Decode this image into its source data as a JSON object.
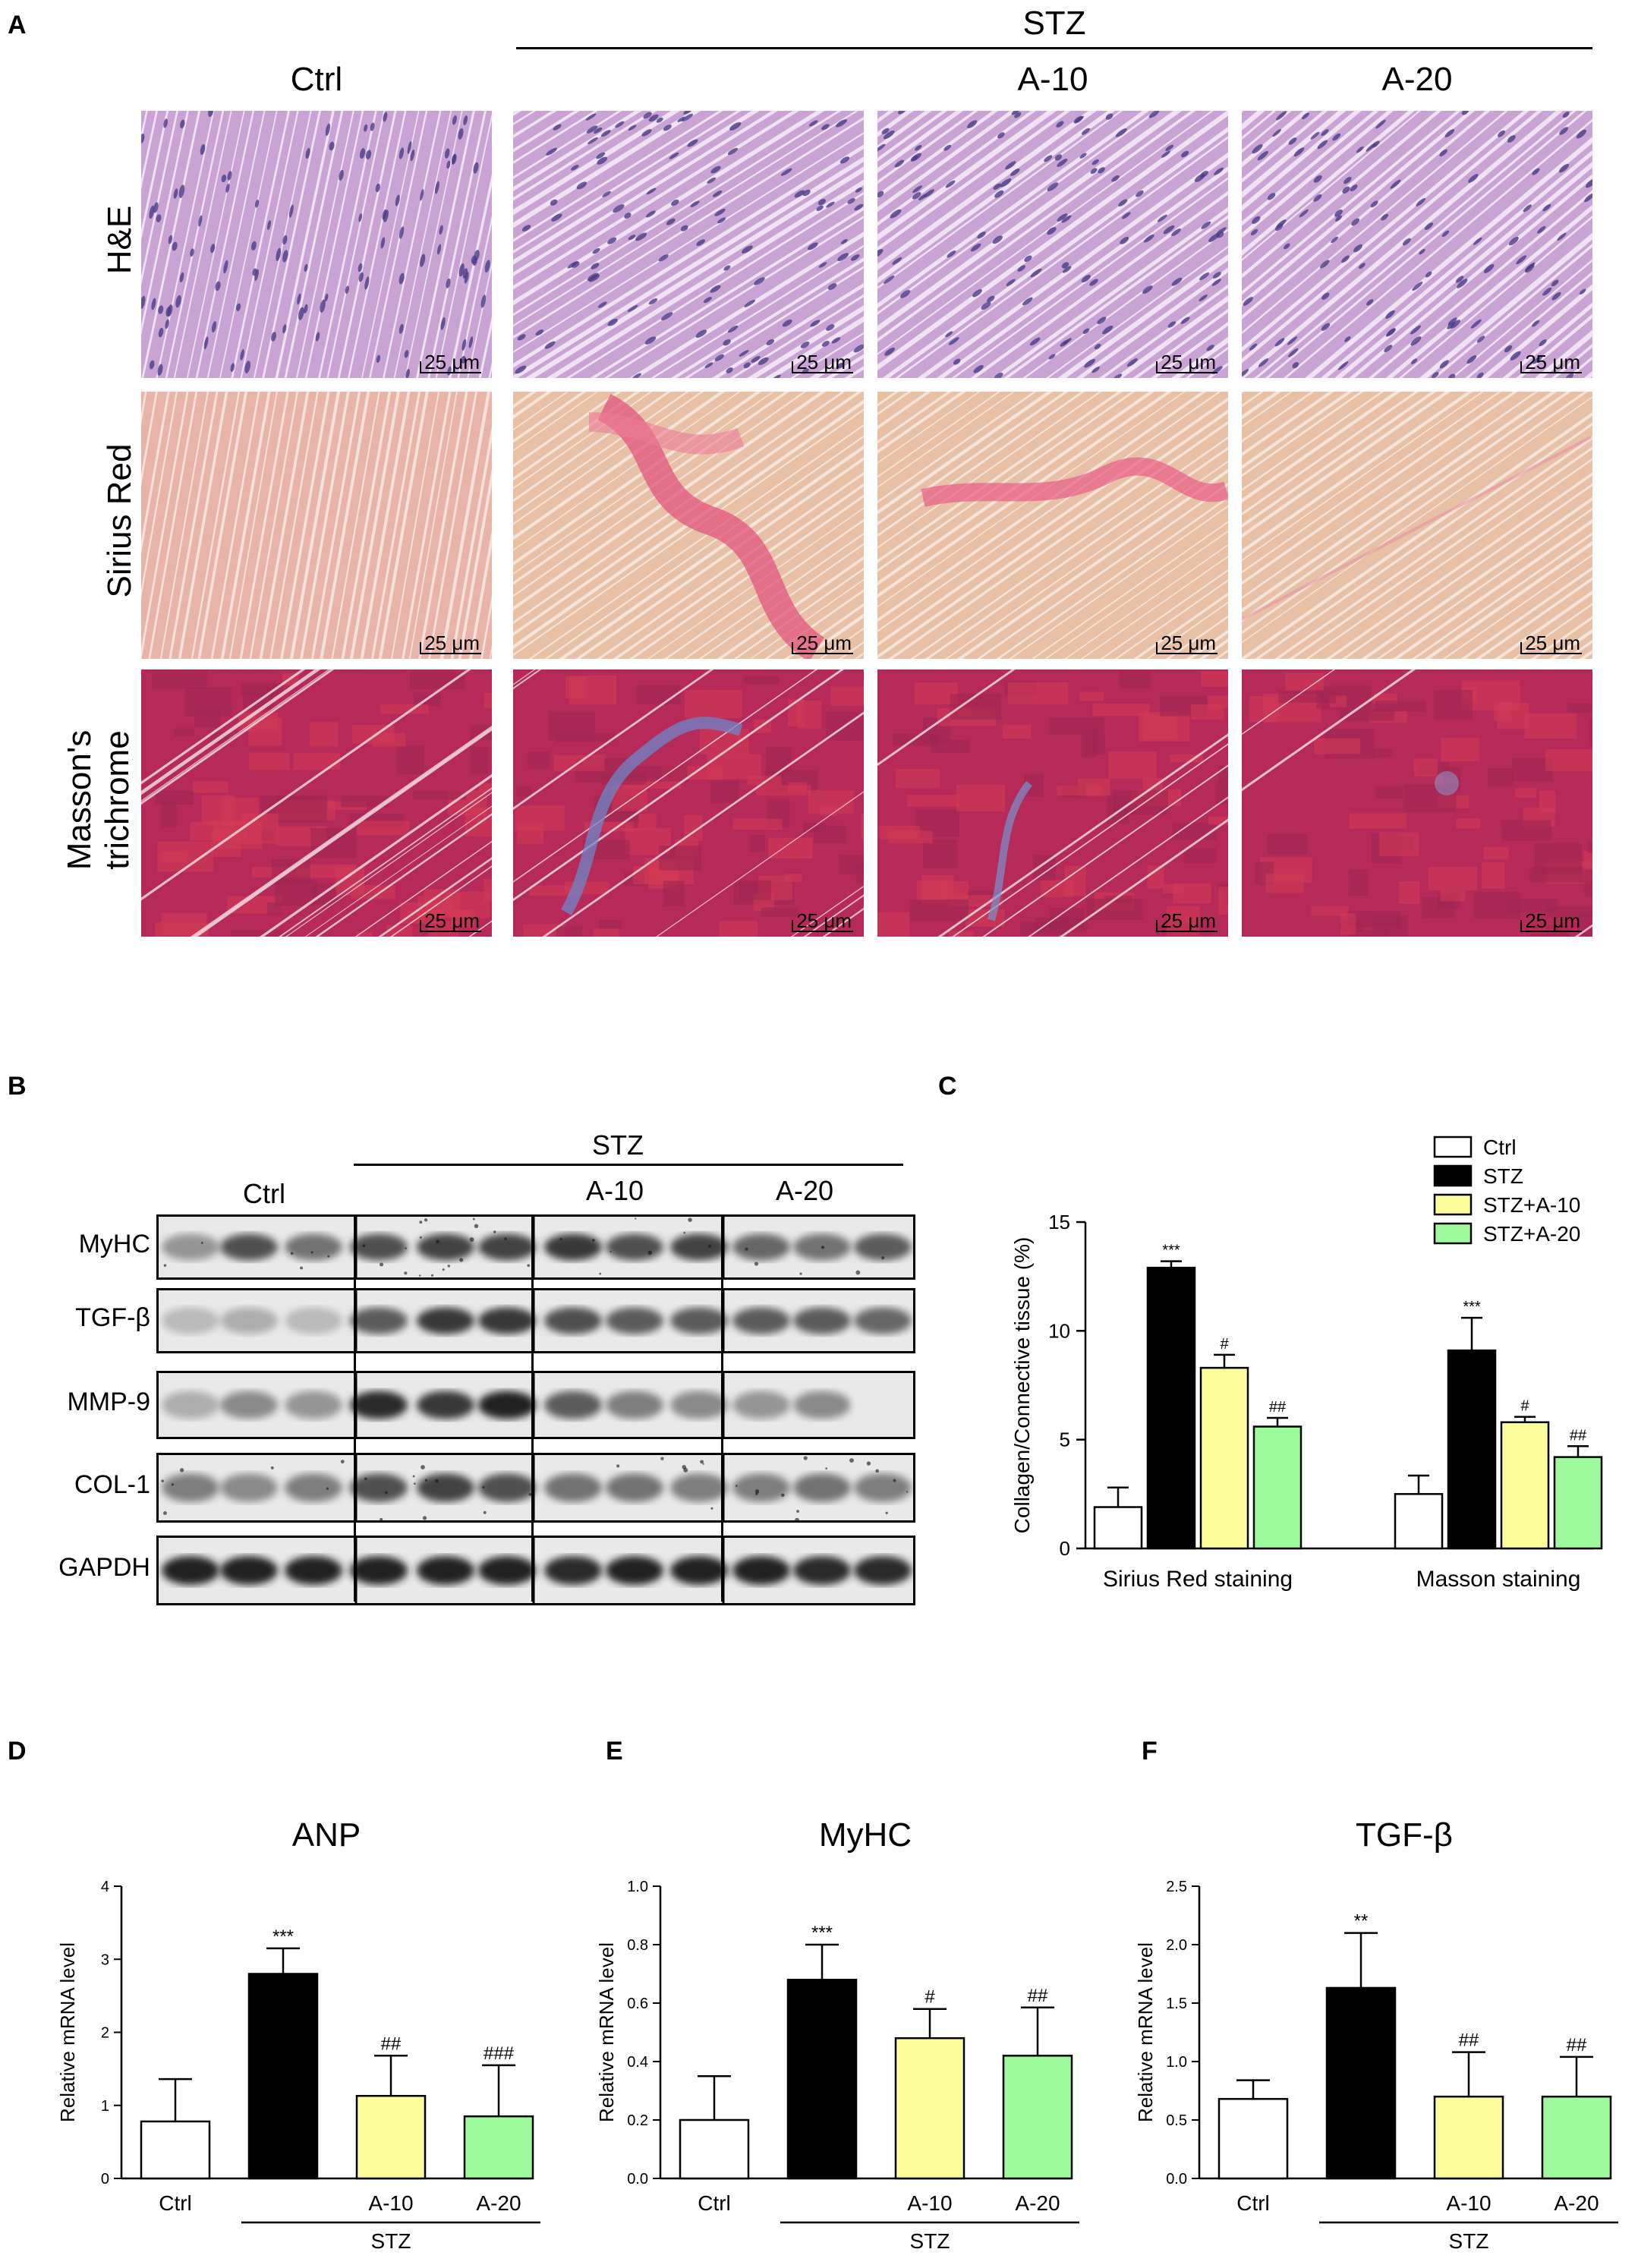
{
  "panelA": {
    "letter": "A",
    "stz_label": "STZ",
    "columns": [
      "Ctrl",
      "",
      "A-10",
      "A-20"
    ],
    "rows": [
      {
        "label_lines": [
          "H&E"
        ],
        "stain": "he"
      },
      {
        "label_lines": [
          "Sirius Red"
        ],
        "stain": "sirius"
      },
      {
        "label_lines": [
          "Masson's",
          "trichrome"
        ],
        "stain": "masson"
      }
    ],
    "scale_label": "25 μm"
  },
  "panelB": {
    "letter": "B",
    "stz_label": "STZ",
    "group_labels": [
      "Ctrl",
      "A-10",
      "A-20"
    ],
    "blots": [
      "MyHC",
      "TGF-β",
      "MMP-9",
      "COL-1",
      "GAPDH"
    ]
  },
  "colors": {
    "Ctrl": "#ffffff",
    "STZ": "#000000",
    "STZ+A-10": "#fdfd9b",
    "STZ+A-20": "#9dfb9d"
  },
  "chart_data": [
    {
      "id": "C",
      "letter": "C",
      "type": "bar",
      "title": "",
      "ylabel": "Collagen/Connective tissue (%)",
      "ylim": [
        0,
        15
      ],
      "yticks": [
        0,
        5,
        10,
        15
      ],
      "categories": [
        "Sirius Red staining",
        "Masson staining"
      ],
      "legend": {
        "position": "top-right",
        "entries": [
          "Ctrl",
          "STZ",
          "STZ+A-10",
          "STZ+A-20"
        ]
      },
      "series": [
        {
          "name": "Ctrl",
          "values": [
            1.9,
            2.5
          ],
          "errors": [
            0.9,
            0.85
          ],
          "labels": [
            "",
            ""
          ]
        },
        {
          "name": "STZ",
          "values": [
            12.9,
            9.1
          ],
          "errors": [
            0.3,
            1.5
          ],
          "labels": [
            "***",
            "***"
          ]
        },
        {
          "name": "STZ+A-10",
          "values": [
            8.3,
            5.8
          ],
          "errors": [
            0.6,
            0.25
          ],
          "labels": [
            "#",
            "#"
          ]
        },
        {
          "name": "STZ+A-20",
          "values": [
            5.6,
            4.2
          ],
          "errors": [
            0.4,
            0.5
          ],
          "labels": [
            "##",
            "##"
          ]
        }
      ]
    },
    {
      "id": "D",
      "letter": "D",
      "type": "bar",
      "title": "ANP",
      "ylabel": "Relative mRNA level",
      "ylim": [
        0,
        4
      ],
      "yticks": [
        0,
        1,
        2,
        3,
        4
      ],
      "ytick_labels": [
        "0",
        "1",
        "2",
        "3",
        "4"
      ],
      "categories": [
        "Ctrl",
        "",
        "A-10",
        "A-20"
      ],
      "group_label": "STZ",
      "values": [
        0.78,
        2.8,
        1.13,
        0.85
      ],
      "errors": [
        0.58,
        0.35,
        0.55,
        0.7
      ],
      "labels": [
        "",
        "***",
        "##",
        "###"
      ],
      "colors": [
        "#ffffff",
        "#000000",
        "#fdfd9b",
        "#9dfb9d"
      ]
    },
    {
      "id": "E",
      "letter": "E",
      "type": "bar",
      "title": "MyHC",
      "ylabel": "Relative mRNA level",
      "ylim": [
        0,
        1.0
      ],
      "yticks": [
        0,
        0.2,
        0.4,
        0.6,
        0.8,
        1.0
      ],
      "ytick_labels": [
        "0.0",
        "0.2",
        "0.4",
        "0.6",
        "0.8",
        "1.0"
      ],
      "categories": [
        "Ctrl",
        "",
        "A-10",
        "A-20"
      ],
      "group_label": "STZ",
      "values": [
        0.2,
        0.68,
        0.48,
        0.42
      ],
      "errors": [
        0.15,
        0.12,
        0.1,
        0.165
      ],
      "labels": [
        "",
        "***",
        "#",
        "##"
      ],
      "colors": [
        "#ffffff",
        "#000000",
        "#fdfd9b",
        "#9dfb9d"
      ]
    },
    {
      "id": "F",
      "letter": "F",
      "type": "bar",
      "title": "TGF-β",
      "ylabel": "Relative mRNA level",
      "ylim": [
        0,
        2.5
      ],
      "yticks": [
        0,
        0.5,
        1,
        1.5,
        2,
        2.5
      ],
      "ytick_labels": [
        "0.0",
        "0.5",
        "1.0",
        "1.5",
        "2.0",
        "2.5"
      ],
      "categories": [
        "Ctrl",
        "",
        "A-10",
        "A-20"
      ],
      "group_label": "STZ",
      "values": [
        0.68,
        1.63,
        0.7,
        0.7
      ],
      "errors": [
        0.16,
        0.47,
        0.38,
        0.34
      ],
      "labels": [
        "",
        "**",
        "##",
        "##"
      ],
      "colors": [
        "#ffffff",
        "#000000",
        "#fdfd9b",
        "#9dfb9d"
      ]
    }
  ]
}
